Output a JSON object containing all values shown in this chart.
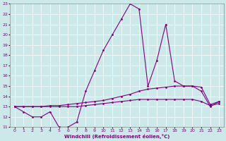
{
  "xlabel": "Windchill (Refroidissement éolien,°C)",
  "bg_color": "#cce8e8",
  "line_color": "#800080",
  "grid_color": "#ffffff",
  "x_values": [
    0,
    1,
    2,
    3,
    4,
    5,
    6,
    7,
    8,
    9,
    10,
    11,
    12,
    13,
    14,
    15,
    16,
    17,
    18,
    19,
    20,
    21,
    22,
    23
  ],
  "series1": [
    13.0,
    12.5,
    12.0,
    12.0,
    12.5,
    11.0,
    11.0,
    11.5,
    14.5,
    16.5,
    18.5,
    20.0,
    21.5,
    23.0,
    22.5,
    15.0,
    17.5,
    21.0,
    15.5,
    15.0,
    15.0,
    14.5,
    13.0,
    13.5
  ],
  "series2": [
    13.0,
    13.0,
    13.0,
    13.0,
    13.1,
    13.1,
    13.2,
    13.3,
    13.4,
    13.5,
    13.6,
    13.8,
    14.0,
    14.2,
    14.5,
    14.7,
    14.8,
    14.9,
    15.0,
    15.0,
    15.0,
    14.9,
    13.2,
    13.5
  ],
  "series3": [
    13.0,
    13.0,
    13.0,
    13.0,
    13.0,
    13.0,
    13.0,
    13.0,
    13.1,
    13.2,
    13.3,
    13.4,
    13.5,
    13.6,
    13.7,
    13.7,
    13.7,
    13.7,
    13.7,
    13.7,
    13.7,
    13.5,
    13.1,
    13.3
  ],
  "ylim": [
    11,
    23
  ],
  "xlim": [
    -0.5,
    23.5
  ],
  "yticks": [
    11,
    12,
    13,
    14,
    15,
    16,
    17,
    18,
    19,
    20,
    21,
    22,
    23
  ],
  "xticks": [
    0,
    1,
    2,
    3,
    4,
    5,
    6,
    7,
    8,
    9,
    10,
    11,
    12,
    13,
    14,
    15,
    16,
    17,
    18,
    19,
    20,
    21,
    22,
    23
  ]
}
